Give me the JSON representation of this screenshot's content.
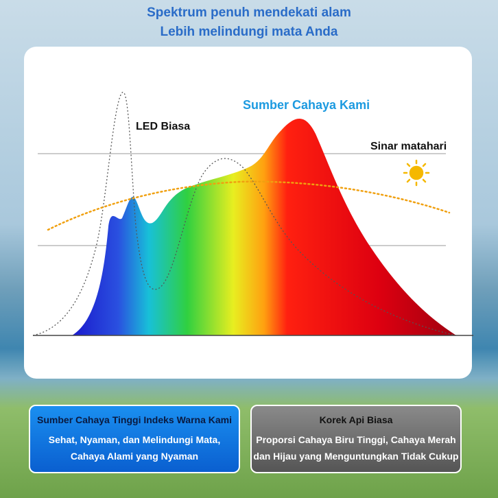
{
  "header": {
    "line1": "Spektrum penuh mendekati alam",
    "line2": "Lebih melindungi mata Anda"
  },
  "labels": {
    "led": "LED Biasa",
    "ours": "Sumber Cahaya Kami",
    "sun": "Sinar matahari"
  },
  "left_box": {
    "title": "Sumber Cahaya Tinggi Indeks Warna Kami",
    "line1": "Sehat, Nyaman, dan Melindungi Mata,",
    "line2": "Cahaya Alami yang Nyaman"
  },
  "right_box": {
    "title": "Korek Api Biasa",
    "line1": "Proporsi Cahaya Biru Tinggi, Cahaya Merah",
    "line2": "dan Hijau yang Menguntungkan Tidak Cukup"
  }
}
